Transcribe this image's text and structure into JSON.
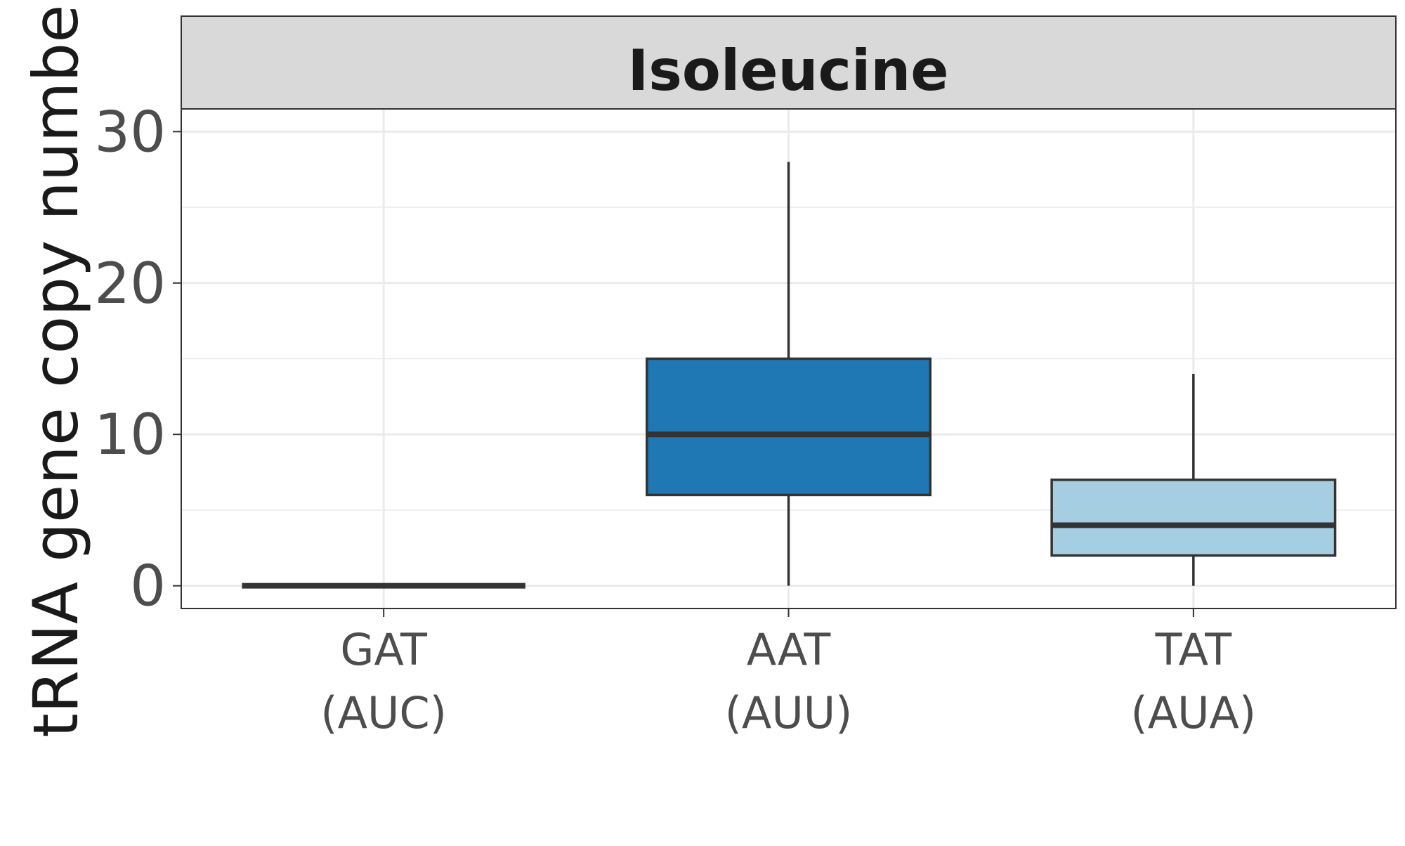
{
  "chart_data": {
    "type": "boxplot",
    "panel_title": "Isoleucine",
    "ylabel": "tRNA gene copy number",
    "xlabel": "",
    "ylim": [
      -1.5,
      31.5
    ],
    "yticks": [
      0,
      10,
      20,
      30
    ],
    "grid": true,
    "categories": [
      {
        "codon": "GAT",
        "anticodon": "(AUC)"
      },
      {
        "codon": "AAT",
        "anticodon": "(AUU)"
      },
      {
        "codon": "TAT",
        "anticodon": "(AUA)"
      }
    ],
    "boxes": [
      {
        "category": "GAT",
        "min": 0,
        "q1": 0,
        "median": 0,
        "q3": 0,
        "max": 0,
        "fill": "#1f78b4"
      },
      {
        "category": "AAT",
        "min": 0,
        "q1": 6,
        "median": 10,
        "q3": 15,
        "max": 28,
        "fill": "#1f78b4"
      },
      {
        "category": "TAT",
        "min": 0,
        "q1": 2,
        "median": 4,
        "q3": 7,
        "max": 14,
        "fill": "#a6cee3"
      }
    ]
  },
  "colors": {
    "strip_bg": "#d9d9d9",
    "grid": "#ebebeb",
    "axis_text": "#4d4d4d",
    "outline": "#333333"
  }
}
